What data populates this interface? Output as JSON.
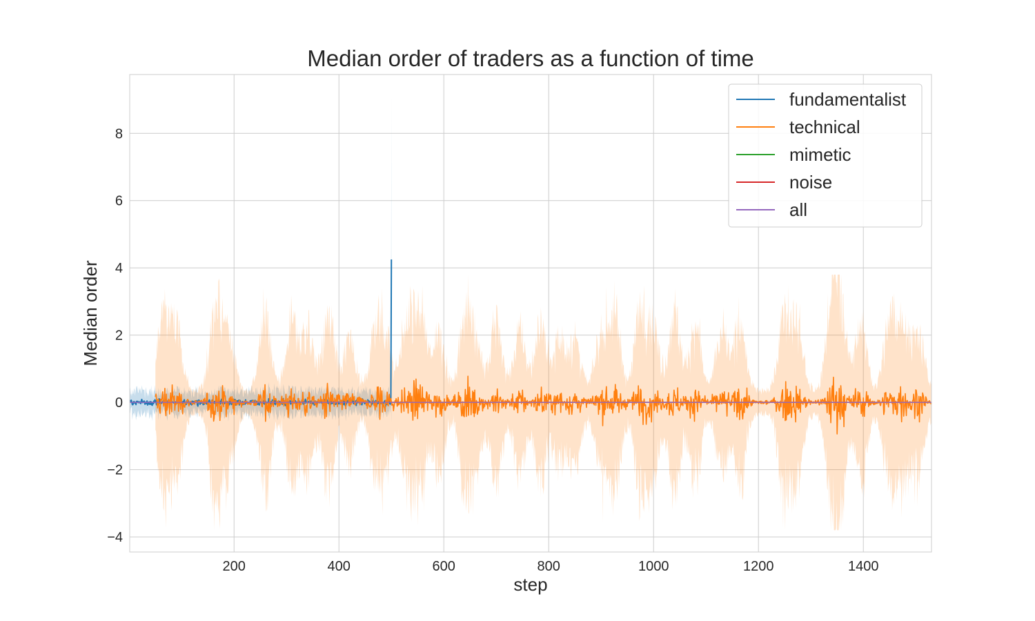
{
  "chart_data": {
    "type": "line",
    "title": "Median order of traders as a function of time",
    "xlabel": "step",
    "ylabel": "Median order",
    "xlim": [
      1,
      1530
    ],
    "ylim": [
      -4.45,
      9.75
    ],
    "xticks": [
      200,
      400,
      600,
      800,
      1000,
      1200,
      1400
    ],
    "yticks": [
      -4,
      -2,
      0,
      2,
      4,
      6,
      8
    ],
    "ytick_labels": [
      "−4",
      "−2",
      "0",
      "2",
      "4",
      "6",
      "8"
    ],
    "grid": true,
    "legend_position": "top-right",
    "series": [
      {
        "name": "fundamentalist",
        "color": "#1f77b4",
        "description_values": {
          "active_steps": [
            1,
            500
          ],
          "spike_step": 500,
          "spike_median": 4.25,
          "spike_band_upper": 9.1,
          "typical_band": 0.5
        }
      },
      {
        "name": "technical",
        "color": "#ff7f0e",
        "description_values": {
          "active_steps": [
            50,
            1530
          ],
          "median_amplitude_max": 1.2,
          "band_amplitude_max": 3.8
        }
      },
      {
        "name": "mimetic",
        "color": "#2ca02c",
        "value": 0
      },
      {
        "name": "noise",
        "color": "#d62728",
        "value": 0
      },
      {
        "name": "all",
        "color": "#9467bd",
        "value": 0
      }
    ]
  }
}
